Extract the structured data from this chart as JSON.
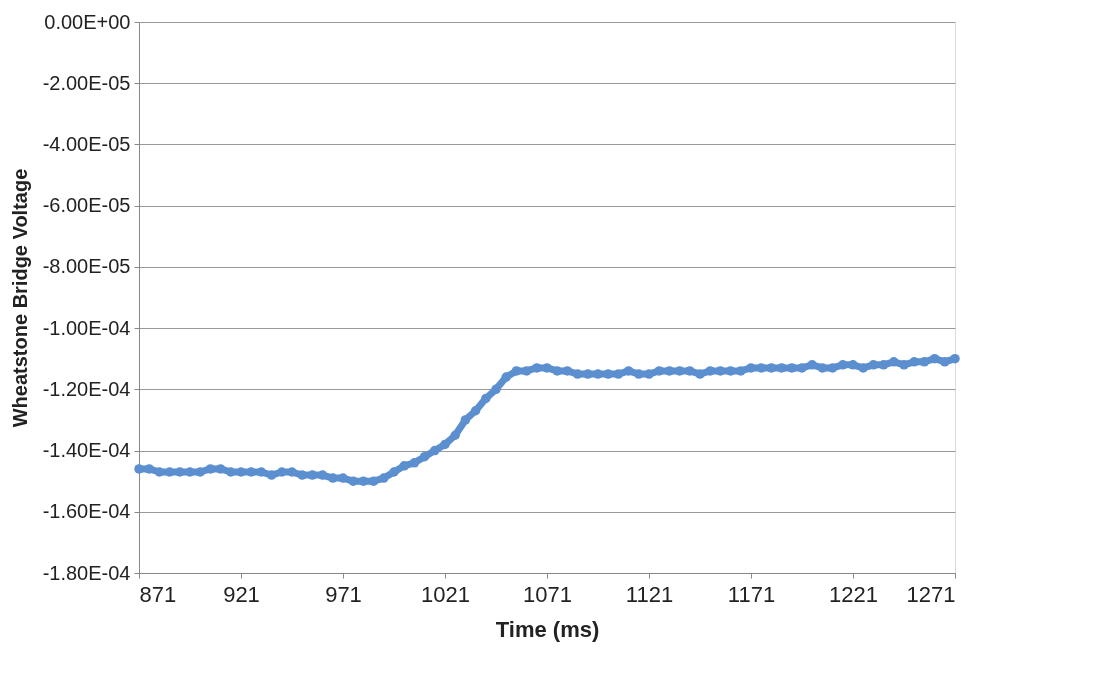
{
  "chart_data": {
    "type": "line",
    "xlabel": "Time (ms)",
    "ylabel": "Wheatstone Bridge Voltage",
    "xlim": [
      871,
      1271
    ],
    "xticks": [
      871,
      921,
      971,
      1021,
      1071,
      1121,
      1171,
      1221,
      1271
    ],
    "ylim": [
      -0.00018,
      0
    ],
    "yticks": [
      {
        "value": 0,
        "label": "0.00E+00"
      },
      {
        "value": -2e-05,
        "label": "-2.00E-05"
      },
      {
        "value": -4e-05,
        "label": "-4.00E-05"
      },
      {
        "value": -6e-05,
        "label": "-6.00E-05"
      },
      {
        "value": -8e-05,
        "label": "-8.00E-05"
      },
      {
        "value": -0.0001,
        "label": "-1.00E-04"
      },
      {
        "value": -0.00012,
        "label": "-1.20E-04"
      },
      {
        "value": -0.00014,
        "label": "-1.40E-04"
      },
      {
        "value": -0.00016,
        "label": "-1.60E-04"
      },
      {
        "value": -0.00018,
        "label": "-1.80E-04"
      }
    ],
    "grid": "y",
    "marker": "circle",
    "line_style": "solid",
    "x": [
      871,
      876,
      881,
      886,
      891,
      896,
      901,
      906,
      911,
      916,
      921,
      926,
      931,
      936,
      941,
      946,
      951,
      956,
      961,
      966,
      971,
      976,
      981,
      986,
      991,
      996,
      1001,
      1006,
      1011,
      1016,
      1021,
      1026,
      1031,
      1036,
      1041,
      1046,
      1051,
      1056,
      1061,
      1066,
      1071,
      1076,
      1081,
      1086,
      1091,
      1096,
      1101,
      1106,
      1111,
      1116,
      1121,
      1126,
      1131,
      1136,
      1141,
      1146,
      1151,
      1156,
      1161,
      1166,
      1171,
      1176,
      1181,
      1186,
      1191,
      1196,
      1201,
      1206,
      1211,
      1216,
      1221,
      1226,
      1231,
      1236,
      1241,
      1246,
      1251,
      1256,
      1261,
      1266,
      1271
    ],
    "series": [
      {
        "color": "#5b8fcf",
        "values": [
          -0.000146,
          -0.000146,
          -0.000147,
          -0.000147,
          -0.000147,
          -0.000147,
          -0.000147,
          -0.000146,
          -0.000146,
          -0.000147,
          -0.000147,
          -0.000147,
          -0.000147,
          -0.000148,
          -0.000147,
          -0.000147,
          -0.000148,
          -0.000148,
          -0.000148,
          -0.000149,
          -0.000149,
          -0.00015,
          -0.00015,
          -0.00015,
          -0.000149,
          -0.000147,
          -0.000145,
          -0.000144,
          -0.000142,
          -0.00014,
          -0.000138,
          -0.000135,
          -0.00013,
          -0.000127,
          -0.000123,
          -0.00012,
          -0.000116,
          -0.000114,
          -0.000114,
          -0.000113,
          -0.000113,
          -0.000114,
          -0.000114,
          -0.000115,
          -0.000115,
          -0.000115,
          -0.000115,
          -0.000115,
          -0.000114,
          -0.000115,
          -0.000115,
          -0.000114,
          -0.000114,
          -0.000114,
          -0.000114,
          -0.000115,
          -0.000114,
          -0.000114,
          -0.000114,
          -0.000114,
          -0.000113,
          -0.000113,
          -0.000113,
          -0.000113,
          -0.000113,
          -0.000113,
          -0.000112,
          -0.000113,
          -0.000113,
          -0.000112,
          -0.000112,
          -0.000113,
          -0.000112,
          -0.000112,
          -0.000111,
          -0.000112,
          -0.000111,
          -0.000111,
          -0.00011,
          -0.000111,
          -0.00011
        ]
      }
    ]
  }
}
